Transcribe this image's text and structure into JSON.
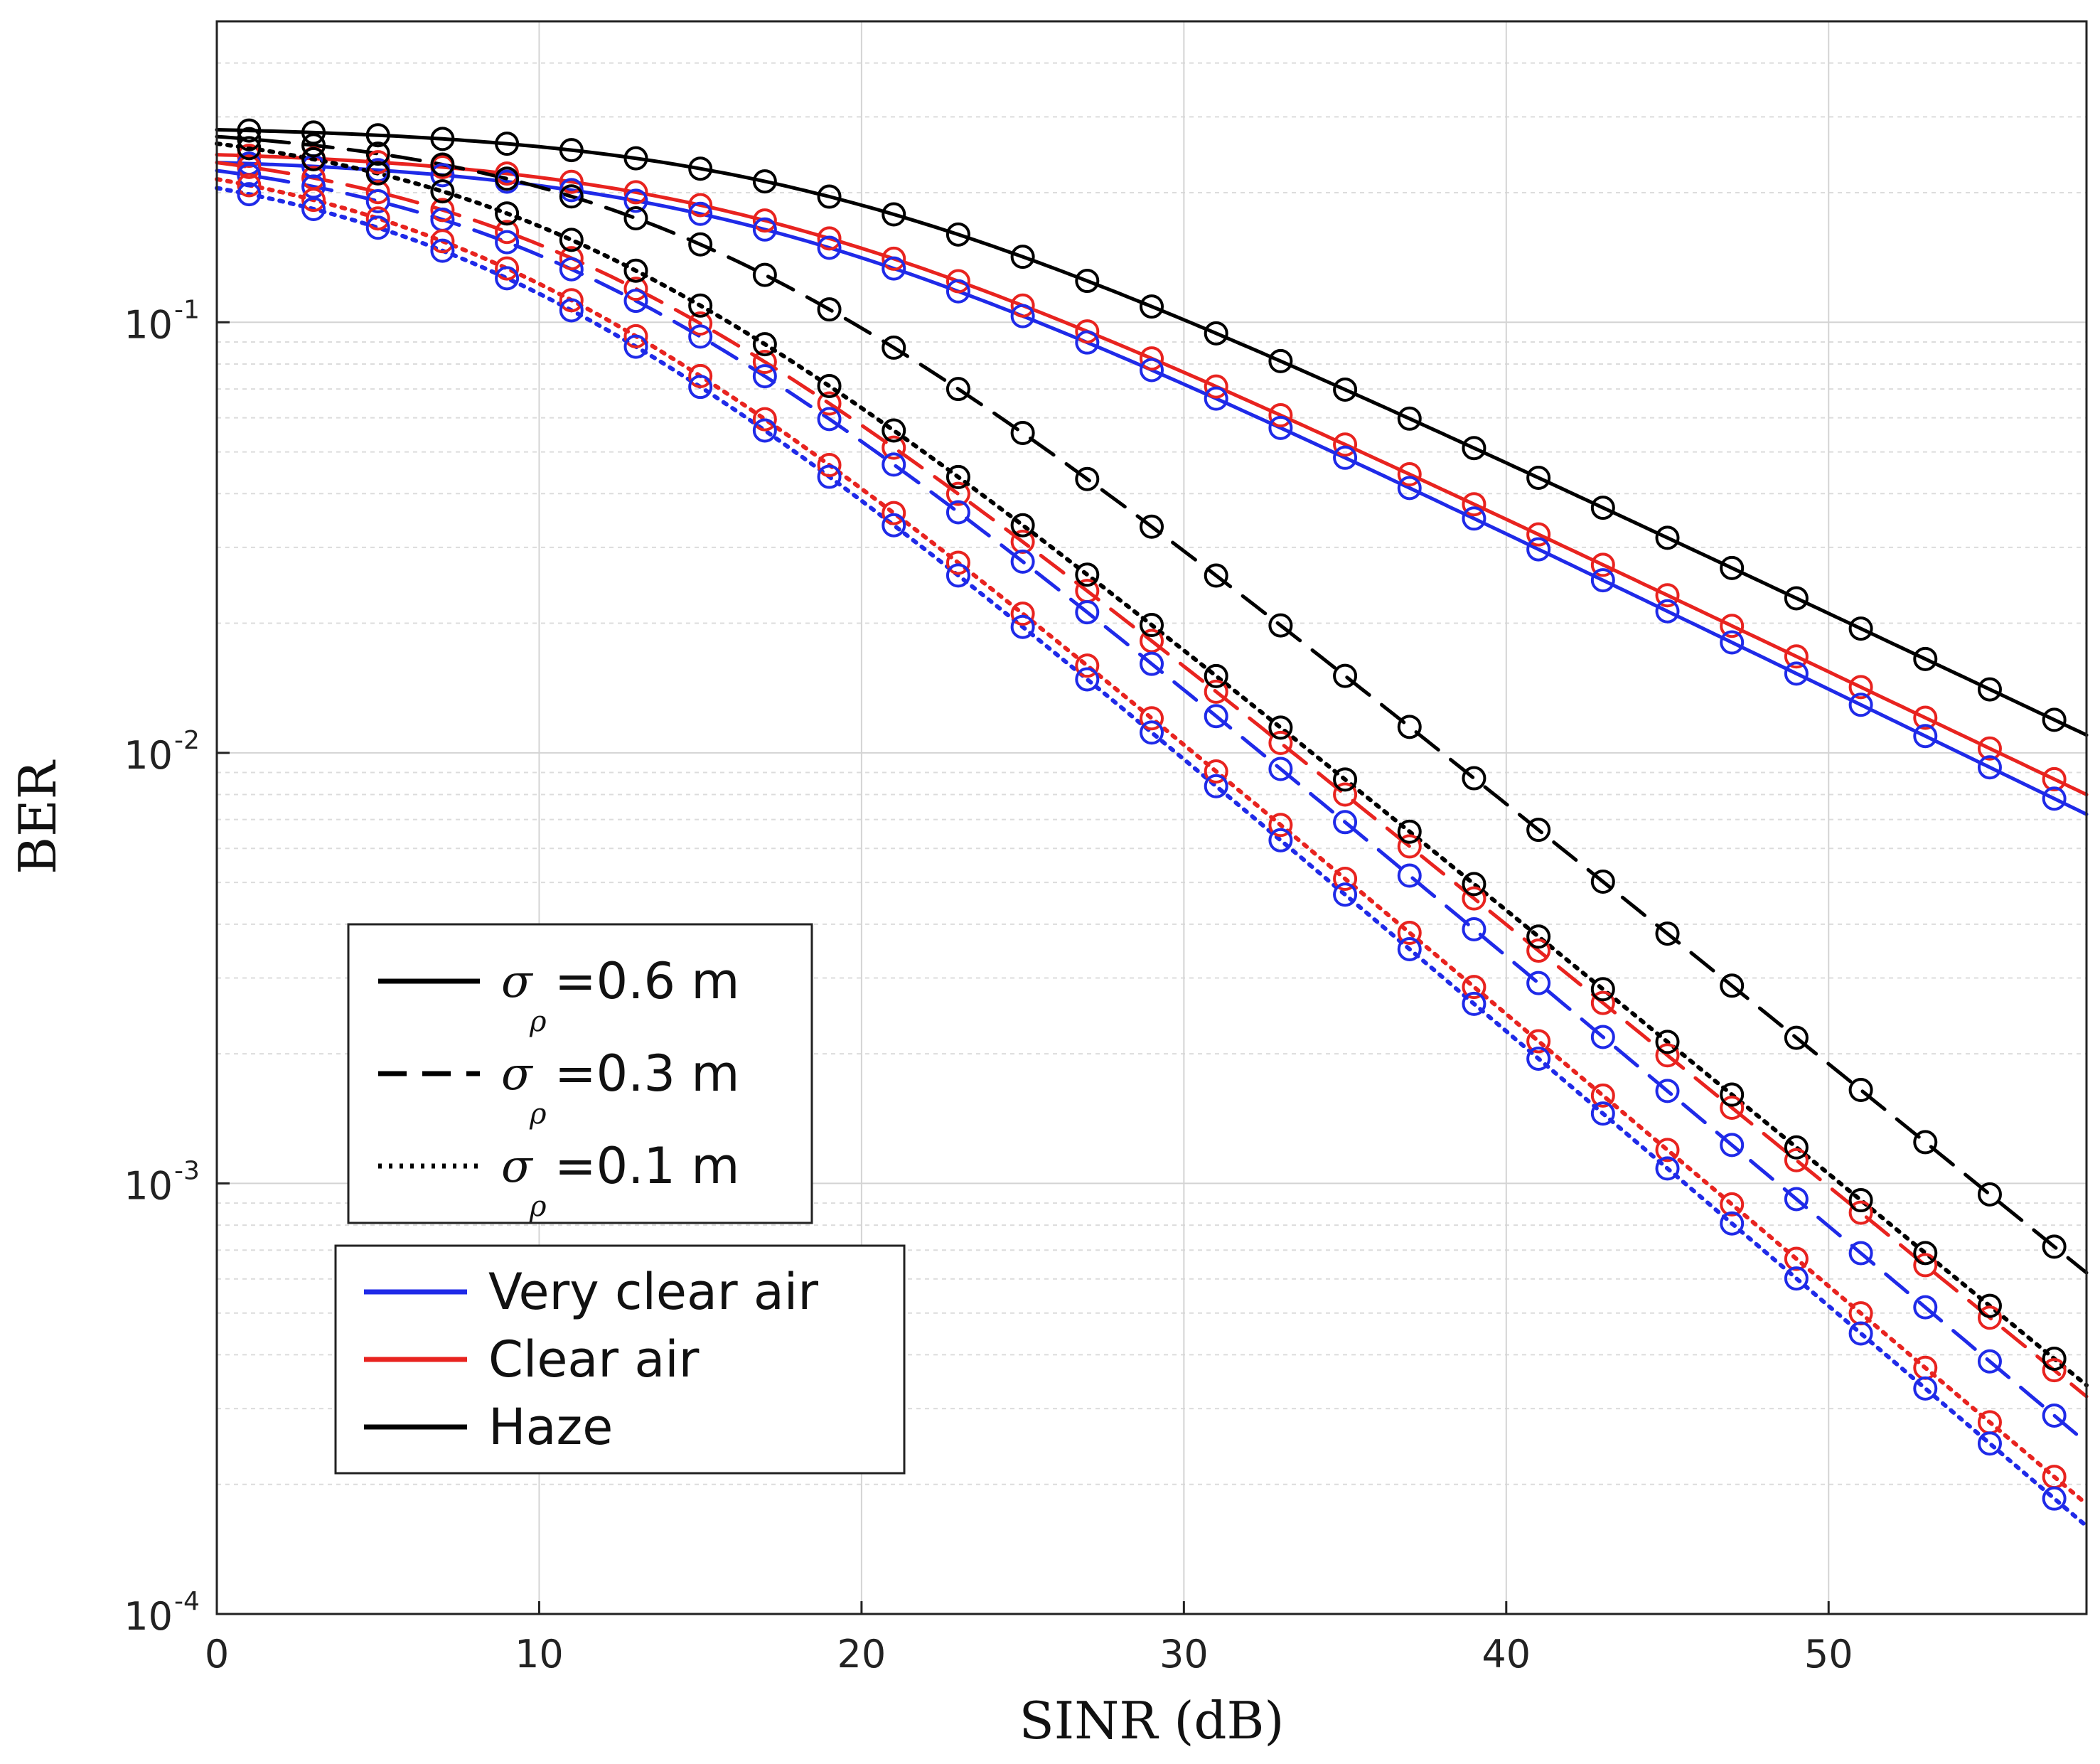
{
  "chart_data": {
    "type": "line",
    "title": "",
    "xlabel": "SINR (dB)",
    "ylabel": "BER",
    "xlim": [
      0,
      58
    ],
    "ylim": [
      0.0001,
      0.5
    ],
    "yscale": "log",
    "grid": true,
    "x_ticks": [
      0,
      10,
      20,
      30,
      40,
      50
    ],
    "y_ticks": [
      {
        "value": 0.1,
        "base": "10",
        "exp": "-1"
      },
      {
        "value": 0.01,
        "base": "10",
        "exp": "-2"
      },
      {
        "value": 0.001,
        "base": "10",
        "exp": "-3"
      },
      {
        "value": 0.0001,
        "base": "10",
        "exp": "-4"
      }
    ],
    "marker": "circle",
    "marker_x": [
      1,
      3,
      5,
      7,
      9,
      11,
      13,
      15,
      17,
      19,
      21,
      23,
      25,
      27,
      29,
      31,
      33,
      35,
      37,
      39,
      41,
      43,
      45,
      47,
      49,
      51,
      53,
      55,
      57
    ],
    "series": [
      {
        "name": "Haze, σρ=0.6 m",
        "color": "#000000",
        "style": "solid",
        "x": [
          0,
          58
        ],
        "curve": [
          0.28,
          0.011
        ],
        "knee": 18
      },
      {
        "name": "Clear air, σρ=0.6 m",
        "color": "#e8231f",
        "style": "solid",
        "x": [
          0,
          58
        ],
        "curve": [
          0.245,
          0.008
        ],
        "knee": 16
      },
      {
        "name": "Very clear air, σρ=0.6 m",
        "color": "#1f2ae8",
        "style": "solid",
        "x": [
          0,
          58
        ],
        "curve": [
          0.235,
          0.0072
        ],
        "knee": 16
      },
      {
        "name": "Haze, σρ=0.3 m",
        "color": "#000000",
        "style": "dashed",
        "x": [
          0,
          58
        ],
        "curve": [
          0.27,
          0.00062
        ],
        "knee": 14
      },
      {
        "name": "Clear air, σρ=0.3 m",
        "color": "#e8231f",
        "style": "dashed",
        "x": [
          0,
          58
        ],
        "curve": [
          0.235,
          0.00032
        ],
        "knee": 10
      },
      {
        "name": "Very clear air, σρ=0.3 m",
        "color": "#1f2ae8",
        "style": "dashed",
        "x": [
          0,
          58
        ],
        "curve": [
          0.225,
          0.00025
        ],
        "knee": 10
      },
      {
        "name": "Haze, σρ=0.1 m",
        "color": "#000000",
        "style": "dotted",
        "x": [
          0,
          58
        ],
        "curve": [
          0.26,
          0.00034
        ],
        "knee": 10
      },
      {
        "name": "Clear air, σρ=0.1 m",
        "color": "#e8231f",
        "style": "dotted",
        "x": [
          0,
          58
        ],
        "curve": [
          0.215,
          0.00018
        ],
        "knee": 8
      },
      {
        "name": "Very clear air, σρ=0.1 m",
        "color": "#1f2ae8",
        "style": "dotted",
        "x": [
          0,
          58
        ],
        "curve": [
          0.205,
          0.00016
        ],
        "knee": 8
      }
    ],
    "legend_style": {
      "position": "center-left",
      "entries": [
        {
          "style": "solid",
          "symbol": "σ",
          "sub": "ρ",
          "text": "=0.6 m"
        },
        {
          "style": "dashed",
          "symbol": "σ",
          "sub": "ρ",
          "text": "=0.3 m"
        },
        {
          "style": "dotted",
          "symbol": "σ",
          "sub": "ρ",
          "text": "=0.1 m"
        }
      ]
    },
    "legend_color": {
      "position": "lower-left",
      "entries": [
        {
          "color": "#1f2ae8",
          "text": "Very clear air"
        },
        {
          "color": "#e8231f",
          "text": "Clear air"
        },
        {
          "color": "#000000",
          "text": "Haze"
        }
      ]
    }
  }
}
